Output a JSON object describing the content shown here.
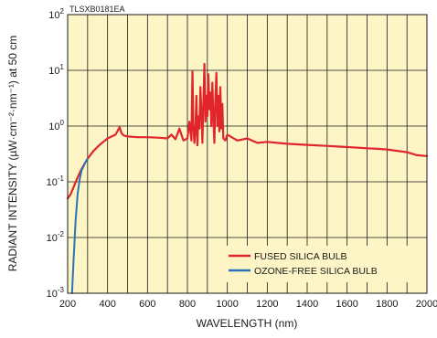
{
  "chart_data": {
    "type": "line",
    "figure_code": "TLSXB0181EA",
    "xlabel": "WAVELENGTH (nm)",
    "ylabel": "RADIANT INTENSITY (µW·cm⁻²·nm⁻¹) at 50 cm",
    "xlim": [
      200,
      2000
    ],
    "ylim": [
      0.001,
      100
    ],
    "y_scale": "log",
    "grid": true,
    "legend_position": "bottom-right",
    "x_ticks": [
      "200",
      "400",
      "600",
      "800",
      "1000",
      "1200",
      "1400",
      "1600",
      "1800",
      "2000"
    ],
    "y_ticks": [
      {
        "base": "10",
        "exp": "2"
      },
      {
        "base": "10",
        "exp": "1"
      },
      {
        "base": "10",
        "exp": "0"
      },
      {
        "base": "10",
        "exp": "-1"
      },
      {
        "base": "10",
        "exp": "-2"
      },
      {
        "base": "10",
        "exp": "-3"
      }
    ],
    "series": [
      {
        "name": "FUSED SILICA BULB",
        "color": "#e0252c",
        "x": [
          200,
          215,
          230,
          250,
          270,
          300,
          330,
          360,
          400,
          440,
          460,
          470,
          480,
          500,
          550,
          600,
          650,
          700,
          720,
          740,
          760,
          780,
          800,
          810,
          820,
          825,
          830,
          835,
          840,
          845,
          850,
          855,
          860,
          865,
          870,
          875,
          880,
          885,
          890,
          895,
          900,
          905,
          910,
          915,
          920,
          925,
          930,
          935,
          940,
          945,
          950,
          955,
          960,
          965,
          970,
          975,
          980,
          990,
          1000,
          1050,
          1100,
          1150,
          1200,
          1250,
          1300,
          1350,
          1400,
          1450,
          1500,
          1550,
          1600,
          1650,
          1700,
          1750,
          1800,
          1850,
          1900,
          1950,
          2000
        ],
        "y": [
          0.05,
          0.06,
          0.08,
          0.12,
          0.17,
          0.26,
          0.36,
          0.46,
          0.6,
          0.7,
          0.95,
          0.75,
          0.68,
          0.65,
          0.63,
          0.63,
          0.62,
          0.6,
          0.7,
          0.58,
          0.9,
          0.55,
          0.6,
          1.2,
          0.55,
          9.5,
          1.0,
          0.5,
          0.8,
          3.5,
          0.45,
          1.5,
          0.9,
          5.0,
          1.8,
          0.5,
          3.0,
          13.0,
          1.2,
          3.5,
          1.5,
          8.5,
          2.0,
          4.0,
          1.0,
          6.0,
          1.5,
          0.5,
          3.0,
          9.0,
          1.0,
          3.5,
          0.8,
          5.0,
          0.9,
          2.5,
          0.6,
          0.55,
          0.7,
          0.55,
          0.6,
          0.5,
          0.52,
          0.5,
          0.48,
          0.47,
          0.46,
          0.45,
          0.44,
          0.43,
          0.42,
          0.41,
          0.4,
          0.39,
          0.38,
          0.36,
          0.34,
          0.3,
          0.29
        ]
      },
      {
        "name": "OZONE-FREE SILICA BULB",
        "color": "#2a74b8",
        "x": [
          222,
          230,
          240,
          250,
          260,
          270,
          285,
          300
        ],
        "y": [
          0.001,
          0.004,
          0.02,
          0.06,
          0.11,
          0.16,
          0.21,
          0.26
        ]
      }
    ]
  }
}
